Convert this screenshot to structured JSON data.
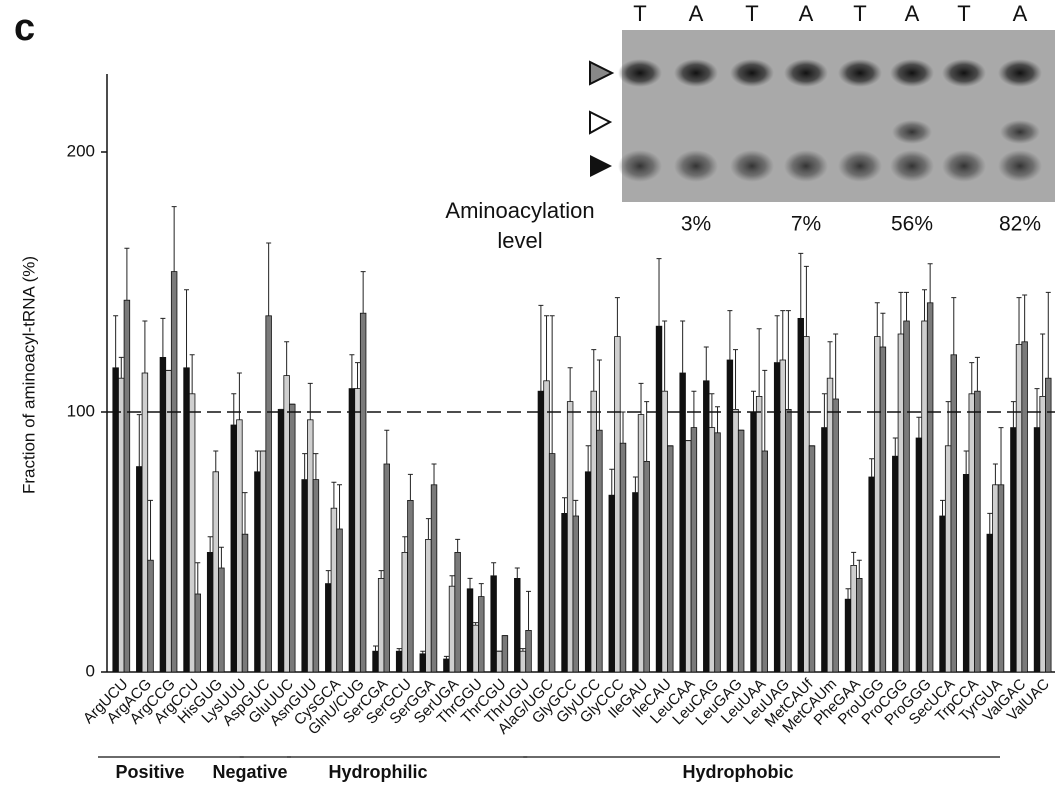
{
  "chart_data": {
    "type": "bar",
    "panel_label": "c",
    "y_label": "Fraction of aminoacyl-tRNA (%)",
    "categories": [
      "ArgUCU",
      "ArgACG",
      "ArgCCG",
      "ArgCCU",
      "HisGUG",
      "LysUUU",
      "AspGUC",
      "GluUUC",
      "AsnGUU",
      "CysGCA",
      "GlnU/CUG",
      "SerCGA",
      "SerGCU",
      "SerGGA",
      "SerUGA",
      "ThrGGU",
      "ThrCGU",
      "ThrUGU",
      "AlaG/UGC",
      "GlyGCC",
      "GlyUCC",
      "GlyCCC",
      "IleGAU",
      "IleCAU",
      "LeuCAA",
      "LeuCAG",
      "LeuGAG",
      "LeuUAA",
      "LeuUAG",
      "MetCAUf",
      "MetCAUm",
      "PheGAA",
      "ProUGG",
      "ProCGG",
      "ProGGG",
      "SecUCA",
      "TrpCCA",
      "TyrGUA",
      "ValGAC",
      "ValUAC"
    ],
    "series": [
      {
        "color": "#111111",
        "values": [
          117,
          79,
          121,
          117,
          46,
          95,
          77,
          101,
          74,
          34,
          109,
          8,
          8,
          7,
          5,
          32,
          37,
          36,
          108,
          61,
          77,
          68,
          69,
          133,
          115,
          112,
          120,
          100,
          119,
          136,
          94,
          28,
          75,
          83,
          90,
          60,
          76,
          53,
          94,
          94
        ],
        "errors": [
          20,
          20,
          15,
          30,
          6,
          12,
          8,
          0,
          10,
          5,
          13,
          2,
          1,
          1,
          1,
          4,
          5,
          4,
          33,
          6,
          10,
          10,
          6,
          26,
          20,
          13,
          19,
          8,
          18,
          25,
          13,
          4,
          7,
          7,
          8,
          6,
          9,
          8,
          10,
          15
        ]
      },
      {
        "color": "#cfcfcf",
        "values": [
          113,
          115,
          116,
          107,
          77,
          97,
          85,
          114,
          97,
          63,
          109,
          36,
          46,
          51,
          33,
          18,
          8,
          8,
          112,
          104,
          108,
          129,
          99,
          108,
          89,
          94,
          101,
          106,
          120,
          129,
          113,
          41,
          129,
          130,
          135,
          87,
          107,
          72,
          126,
          106
        ],
        "errors": [
          8,
          20,
          0,
          15,
          8,
          18,
          0,
          13,
          14,
          10,
          10,
          3,
          6,
          8,
          4,
          1,
          0,
          1,
          25,
          13,
          16,
          15,
          12,
          27,
          0,
          13,
          23,
          26,
          19,
          27,
          14,
          5,
          13,
          16,
          12,
          17,
          12,
          8,
          18,
          24
        ]
      },
      {
        "color": "#7a7a7a",
        "values": [
          143,
          43,
          154,
          30,
          40,
          53,
          137,
          103,
          74,
          55,
          138,
          80,
          66,
          72,
          46,
          29,
          14,
          16,
          84,
          60,
          93,
          88,
          81,
          87,
          94,
          92,
          93,
          85,
          101,
          87,
          105,
          36,
          125,
          135,
          142,
          122,
          108,
          72,
          127,
          113
        ],
        "errors": [
          20,
          23,
          25,
          12,
          8,
          16,
          28,
          0,
          10,
          17,
          16,
          13,
          10,
          8,
          5,
          5,
          0,
          15,
          53,
          6,
          27,
          12,
          23,
          0,
          14,
          10,
          0,
          31,
          38,
          0,
          25,
          7,
          13,
          11,
          15,
          22,
          13,
          22,
          18,
          33
        ]
      }
    ],
    "groups": [
      "Positive",
      "Negative",
      "Hydrophilic",
      "Hydrophobic"
    ],
    "ylim": [
      0,
      230
    ],
    "yticks": [
      0,
      100,
      200
    ],
    "hline": 100,
    "inset": {
      "lanes": [
        "T",
        "A",
        "T",
        "A",
        "T",
        "A",
        "T",
        "A"
      ],
      "caption": "Aminoacylation level",
      "levels": [
        "3%",
        "7%",
        "56%",
        "82%"
      ]
    }
  }
}
